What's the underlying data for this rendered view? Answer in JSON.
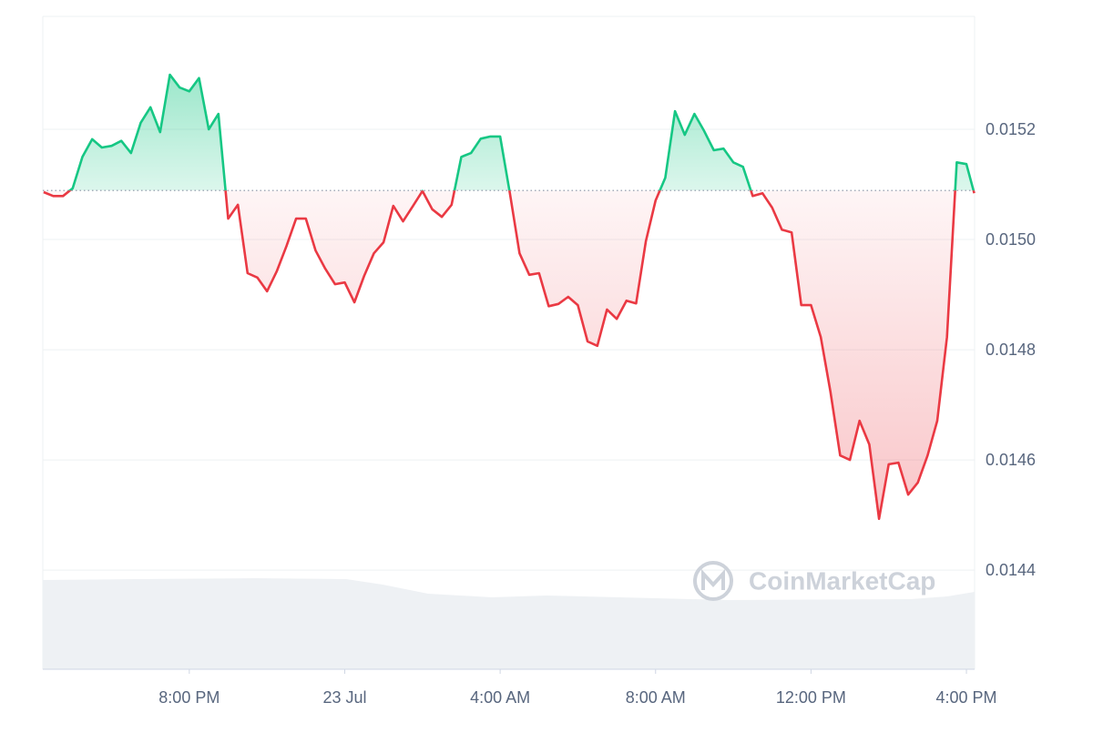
{
  "chart_data": {
    "type": "line",
    "watermark": "CoinMarketCap",
    "x": [
      16.25,
      16.5,
      16.75,
      17,
      17.25,
      17.5,
      17.75,
      18,
      18.25,
      18.5,
      18.75,
      19,
      19.25,
      19.5,
      19.75,
      20,
      20.25,
      20.5,
      20.75,
      21,
      21.25,
      21.5,
      21.75,
      22,
      22.25,
      22.5,
      22.75,
      23,
      23.25,
      23.5,
      23.75,
      24,
      24.25,
      24.5,
      24.75,
      25,
      25.25,
      25.5,
      25.75,
      26,
      26.25,
      26.5,
      26.75,
      27,
      27.25,
      27.5,
      27.75,
      28,
      28.25,
      28.5,
      28.75,
      29,
      29.25,
      29.5,
      29.75,
      30,
      30.25,
      30.5,
      30.75,
      31,
      31.25,
      31.5,
      31.75,
      32,
      32.25,
      32.5,
      32.75,
      33,
      33.25,
      33.5,
      33.75,
      34,
      34.25,
      34.5,
      34.75,
      35,
      35.25,
      35.5,
      35.75,
      36,
      36.25,
      36.5,
      36.75,
      37,
      37.25,
      37.5,
      37.75,
      38,
      38.25,
      38.5,
      38.75,
      39,
      39.25,
      39.5,
      39.75,
      40,
      40.2
    ],
    "values": [
      0.015086,
      0.015079,
      0.015079,
      0.015093,
      0.01515,
      0.015182,
      0.015167,
      0.01517,
      0.015179,
      0.015157,
      0.015212,
      0.01524,
      0.015195,
      0.015299,
      0.015276,
      0.015269,
      0.015293,
      0.0152,
      0.015228,
      0.015038,
      0.015063,
      0.014939,
      0.014931,
      0.014906,
      0.014942,
      0.014988,
      0.015038,
      0.015038,
      0.01498,
      0.014947,
      0.014919,
      0.014922,
      0.014886,
      0.014934,
      0.014975,
      0.014995,
      0.015061,
      0.015033,
      0.01506,
      0.015088,
      0.015055,
      0.015041,
      0.015063,
      0.01515,
      0.015157,
      0.015183,
      0.015187,
      0.015187,
      0.015084,
      0.014975,
      0.014936,
      0.014939,
      0.014879,
      0.014883,
      0.014896,
      0.014881,
      0.014815,
      0.014807,
      0.014873,
      0.014856,
      0.014889,
      0.014884,
      0.014997,
      0.015071,
      0.015112,
      0.015233,
      0.01519,
      0.015228,
      0.015197,
      0.015162,
      0.015165,
      0.01514,
      0.015132,
      0.015079,
      0.015084,
      0.015058,
      0.015018,
      0.015013,
      0.014881,
      0.014881,
      0.014823,
      0.014724,
      0.014608,
      0.0146,
      0.014671,
      0.014628,
      0.014493,
      0.014592,
      0.014595,
      0.014537,
      0.014559,
      0.014608,
      0.014671,
      0.014823,
      0.01514,
      0.015137,
      0.015084
    ],
    "baseline": 0.015089,
    "color_up": "#16c784",
    "color_down": "#ea3943",
    "xlim": [
      16.23,
      40.21
    ],
    "xticks": [
      {
        "value": 20,
        "label": "8:00 PM"
      },
      {
        "value": 24,
        "label": "23 Jul"
      },
      {
        "value": 28,
        "label": "4:00 AM"
      },
      {
        "value": 32,
        "label": "8:00 AM"
      },
      {
        "value": 36,
        "label": "12:00 PM"
      },
      {
        "value": 40,
        "label": "4:00 PM"
      }
    ],
    "ylim": [
      0.01422,
      0.015405
    ],
    "yticks": [
      0.0144,
      0.0146,
      0.0148,
      {
        "value": 0.015,
        "label": "0.0150"
      },
      0.0152
    ],
    "grid": true
  }
}
